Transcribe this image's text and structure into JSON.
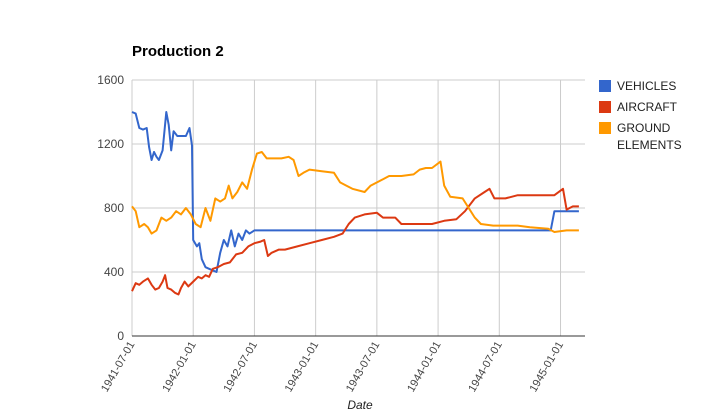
{
  "chart_data": {
    "type": "line",
    "title": "Production 2",
    "xlabel": "Date",
    "ylabel": "",
    "ylim": [
      0,
      1600
    ],
    "yticks": [
      0,
      400,
      800,
      1200,
      1600
    ],
    "xticks": [
      "1941-07-01",
      "1942-01-01",
      "1942-07-01",
      "1943-01-01",
      "1943-07-01",
      "1944-01-01",
      "1944-07-01",
      "1945-01-01"
    ],
    "xlim": [
      1941.5,
      1945.2
    ],
    "grid": true,
    "legend_position": "right",
    "series": [
      {
        "name": "VEHICLES",
        "color": "#3366cc",
        "points": [
          [
            1941.5,
            1400
          ],
          [
            1941.53,
            1390
          ],
          [
            1941.56,
            1300
          ],
          [
            1941.59,
            1290
          ],
          [
            1941.62,
            1300
          ],
          [
            1941.64,
            1180
          ],
          [
            1941.66,
            1100
          ],
          [
            1941.68,
            1150
          ],
          [
            1941.7,
            1120
          ],
          [
            1941.72,
            1100
          ],
          [
            1941.75,
            1160
          ],
          [
            1941.78,
            1400
          ],
          [
            1941.8,
            1320
          ],
          [
            1941.82,
            1160
          ],
          [
            1941.84,
            1280
          ],
          [
            1941.87,
            1250
          ],
          [
            1941.9,
            1250
          ],
          [
            1941.94,
            1250
          ],
          [
            1941.97,
            1300
          ],
          [
            1941.99,
            1190
          ],
          [
            1942.0,
            600
          ],
          [
            1942.03,
            560
          ],
          [
            1942.05,
            580
          ],
          [
            1942.07,
            480
          ],
          [
            1942.1,
            430
          ],
          [
            1942.13,
            420
          ],
          [
            1942.16,
            410
          ],
          [
            1942.19,
            400
          ],
          [
            1942.22,
            520
          ],
          [
            1942.25,
            600
          ],
          [
            1942.28,
            560
          ],
          [
            1942.31,
            660
          ],
          [
            1942.34,
            560
          ],
          [
            1942.37,
            640
          ],
          [
            1942.4,
            600
          ],
          [
            1942.43,
            660
          ],
          [
            1942.46,
            640
          ],
          [
            1942.5,
            660
          ],
          [
            1942.54,
            660
          ],
          [
            1942.58,
            660
          ],
          [
            1942.75,
            660
          ],
          [
            1943.0,
            660
          ],
          [
            1943.25,
            660
          ],
          [
            1943.5,
            660
          ],
          [
            1943.75,
            660
          ],
          [
            1944.0,
            660
          ],
          [
            1944.25,
            660
          ],
          [
            1944.5,
            660
          ],
          [
            1944.75,
            660
          ],
          [
            1944.92,
            660
          ],
          [
            1944.95,
            780
          ],
          [
            1945.0,
            780
          ],
          [
            1945.1,
            780
          ],
          [
            1945.15,
            780
          ]
        ]
      },
      {
        "name": "AIRCRAFT",
        "color": "#dc3912",
        "points": [
          [
            1941.5,
            280
          ],
          [
            1941.53,
            330
          ],
          [
            1941.56,
            320
          ],
          [
            1941.59,
            340
          ],
          [
            1941.63,
            360
          ],
          [
            1941.66,
            320
          ],
          [
            1941.69,
            290
          ],
          [
            1941.72,
            300
          ],
          [
            1941.75,
            340
          ],
          [
            1941.77,
            380
          ],
          [
            1941.79,
            300
          ],
          [
            1941.82,
            290
          ],
          [
            1941.85,
            270
          ],
          [
            1941.88,
            260
          ],
          [
            1941.9,
            300
          ],
          [
            1941.93,
            340
          ],
          [
            1941.96,
            310
          ],
          [
            1942.0,
            340
          ],
          [
            1942.04,
            370
          ],
          [
            1942.07,
            360
          ],
          [
            1942.1,
            380
          ],
          [
            1942.13,
            370
          ],
          [
            1942.16,
            420
          ],
          [
            1942.2,
            430
          ],
          [
            1942.25,
            450
          ],
          [
            1942.3,
            460
          ],
          [
            1942.35,
            510
          ],
          [
            1942.4,
            520
          ],
          [
            1942.45,
            560
          ],
          [
            1942.5,
            580
          ],
          [
            1942.55,
            590
          ],
          [
            1942.58,
            600
          ],
          [
            1942.61,
            500
          ],
          [
            1942.64,
            520
          ],
          [
            1942.7,
            540
          ],
          [
            1942.75,
            540
          ],
          [
            1942.85,
            560
          ],
          [
            1942.95,
            580
          ],
          [
            1943.05,
            600
          ],
          [
            1943.15,
            620
          ],
          [
            1943.22,
            640
          ],
          [
            1943.27,
            700
          ],
          [
            1943.32,
            740
          ],
          [
            1943.4,
            760
          ],
          [
            1943.5,
            770
          ],
          [
            1943.55,
            740
          ],
          [
            1943.65,
            740
          ],
          [
            1943.7,
            700
          ],
          [
            1943.8,
            700
          ],
          [
            1943.95,
            700
          ],
          [
            1944.05,
            720
          ],
          [
            1944.15,
            730
          ],
          [
            1944.22,
            780
          ],
          [
            1944.3,
            860
          ],
          [
            1944.38,
            900
          ],
          [
            1944.42,
            920
          ],
          [
            1944.46,
            860
          ],
          [
            1944.55,
            860
          ],
          [
            1944.65,
            880
          ],
          [
            1944.75,
            880
          ],
          [
            1944.85,
            880
          ],
          [
            1944.95,
            880
          ],
          [
            1945.02,
            920
          ],
          [
            1945.05,
            790
          ],
          [
            1945.1,
            810
          ],
          [
            1945.15,
            810
          ]
        ]
      },
      {
        "name": "GROUND ELEMENTS",
        "color": "#ff9900",
        "points": [
          [
            1941.5,
            810
          ],
          [
            1941.53,
            780
          ],
          [
            1941.56,
            680
          ],
          [
            1941.6,
            700
          ],
          [
            1941.63,
            680
          ],
          [
            1941.66,
            640
          ],
          [
            1941.7,
            660
          ],
          [
            1941.74,
            740
          ],
          [
            1941.78,
            720
          ],
          [
            1941.82,
            740
          ],
          [
            1941.86,
            780
          ],
          [
            1941.9,
            760
          ],
          [
            1941.94,
            800
          ],
          [
            1941.98,
            760
          ],
          [
            1942.02,
            700
          ],
          [
            1942.06,
            680
          ],
          [
            1942.1,
            800
          ],
          [
            1942.14,
            720
          ],
          [
            1942.18,
            860
          ],
          [
            1942.22,
            840
          ],
          [
            1942.26,
            860
          ],
          [
            1942.29,
            940
          ],
          [
            1942.32,
            860
          ],
          [
            1942.36,
            900
          ],
          [
            1942.4,
            960
          ],
          [
            1942.44,
            920
          ],
          [
            1942.48,
            1040
          ],
          [
            1942.52,
            1140
          ],
          [
            1942.56,
            1150
          ],
          [
            1942.6,
            1110
          ],
          [
            1942.66,
            1110
          ],
          [
            1942.72,
            1110
          ],
          [
            1942.78,
            1120
          ],
          [
            1942.82,
            1100
          ],
          [
            1942.86,
            1000
          ],
          [
            1942.9,
            1020
          ],
          [
            1942.95,
            1040
          ],
          [
            1943.05,
            1030
          ],
          [
            1943.15,
            1020
          ],
          [
            1943.2,
            960
          ],
          [
            1943.25,
            940
          ],
          [
            1943.3,
            920
          ],
          [
            1943.4,
            900
          ],
          [
            1943.45,
            940
          ],
          [
            1943.55,
            980
          ],
          [
            1943.6,
            1000
          ],
          [
            1943.7,
            1000
          ],
          [
            1943.8,
            1010
          ],
          [
            1943.85,
            1040
          ],
          [
            1943.9,
            1050
          ],
          [
            1943.95,
            1050
          ],
          [
            1944.02,
            1090
          ],
          [
            1944.05,
            940
          ],
          [
            1944.1,
            870
          ],
          [
            1944.2,
            860
          ],
          [
            1944.25,
            800
          ],
          [
            1944.3,
            740
          ],
          [
            1944.35,
            700
          ],
          [
            1944.45,
            690
          ],
          [
            1944.55,
            690
          ],
          [
            1944.65,
            690
          ],
          [
            1944.75,
            680
          ],
          [
            1944.9,
            670
          ],
          [
            1944.95,
            650
          ],
          [
            1945.05,
            660
          ],
          [
            1945.15,
            660
          ]
        ]
      }
    ]
  }
}
